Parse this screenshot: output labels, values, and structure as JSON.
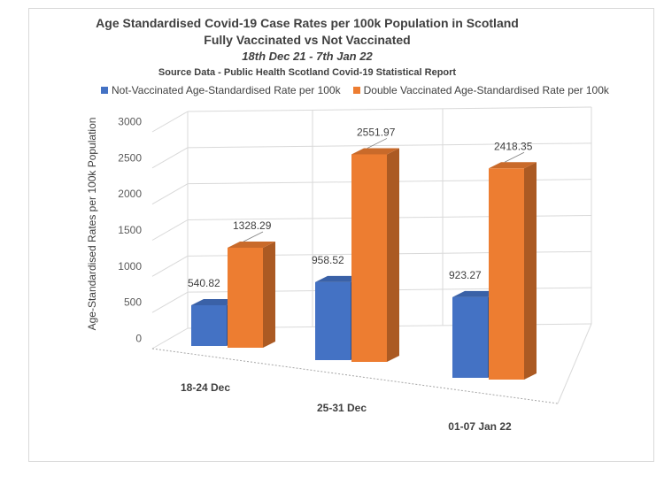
{
  "chart_data": {
    "type": "bar",
    "title": "Age Standardised Covid-19 Case Rates per 100k Population in Scotland",
    "subtitle": "Fully Vaccinated vs Not Vaccinated",
    "date_range": "18th Dec 21 - 7th Jan 22",
    "source": "Source Data - Public Health Scotland Covid-19 Statistical Report",
    "categories": [
      "18-24 Dec",
      "25-31 Dec",
      "01-07 Jan 22"
    ],
    "series": [
      {
        "name": "Not-Vaccinated Age-Standardised Rate per 100k",
        "color": "#4472c4",
        "values": [
          540.82,
          958.52,
          923.27
        ],
        "labels": [
          "540.82",
          "958.52",
          "923.27"
        ]
      },
      {
        "name": "Double Vaccinated Age-Standardised Rate per 100k",
        "color": "#ed7d31",
        "values": [
          1328.29,
          2551.97,
          2418.35
        ],
        "labels": [
          "1328.29",
          "2551.97",
          "2418.35"
        ]
      }
    ],
    "xlabel": "",
    "ylabel": "Age-Standardised Rates per 100k Population",
    "ylim": [
      0,
      3000
    ],
    "yticks": [
      "0",
      "500",
      "1000",
      "1500",
      "2000",
      "2500",
      "3000"
    ],
    "grid": true,
    "legend_position": "top"
  }
}
